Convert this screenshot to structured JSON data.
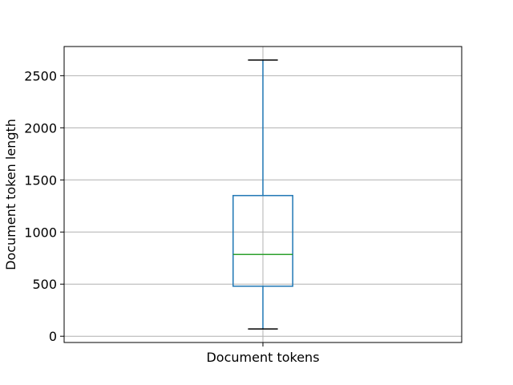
{
  "chart_data": {
    "type": "box",
    "title": "",
    "xlabel": "",
    "ylabel": "Document token length",
    "categories": [
      "Document tokens"
    ],
    "boxes": [
      {
        "name": "Document tokens",
        "whisker_low": 70,
        "q1": 480,
        "median": 785,
        "q3": 1350,
        "whisker_high": 2650
      }
    ],
    "yticks": [
      0,
      500,
      1000,
      1500,
      2000,
      2500
    ],
    "ytick_labels": [
      "0",
      "500",
      "1000",
      "1500",
      "2000",
      "2500"
    ],
    "ylim": [
      -60,
      2780
    ],
    "grid": true,
    "colors": {
      "box": "#1f77b4",
      "whisker": "#1f77b4",
      "cap": "#000000",
      "median": "#2ca02c",
      "grid": "#b0b0b0",
      "frame": "#000000"
    }
  }
}
